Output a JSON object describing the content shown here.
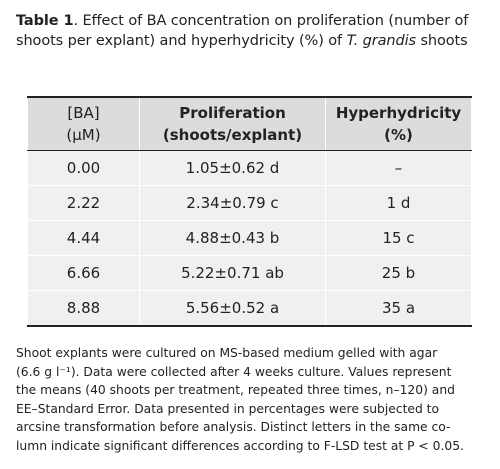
{
  "caption": {
    "label": "Table 1",
    "text": ". Effect of BA concentration on proliferation (number of shoots per explant) and hyperhydricity (%) of ",
    "species": "T. grandis",
    "tail": " shoots"
  },
  "table": {
    "headers": [
      {
        "line1": "[BA]",
        "line2": "(µM)"
      },
      {
        "line1": "Proliferation",
        "line2": "(shoots/explant)"
      },
      {
        "line1": "Hyperhydricity",
        "line2": "(%)"
      }
    ],
    "rows": [
      [
        "0.00",
        "1.05±0.62 d",
        "–"
      ],
      [
        "2.22",
        "2.34±0.79 c",
        "1 d"
      ],
      [
        "4.44",
        "4.88±0.43 b",
        "15 c"
      ],
      [
        "6.66",
        "5.22±0.71 ab",
        "25 b"
      ],
      [
        "8.88",
        "5.56±0.52 a",
        "35 a"
      ]
    ]
  },
  "footnote": {
    "lines": [
      "Shoot explants were cultured on MS-based medium gelled with agar",
      "(6.6 g l⁻¹). Data were collected after 4 weeks culture. Values represent",
      "the means (40 shoots per treatment, repeated three times, n–120) and",
      "EE–Standard Error. Data presented in percentages were subjected to",
      "arcsine transformation before analysis. Distinct letters in the same co-",
      "lumn indicate significant differences according to F-LSD test at P < 0.05."
    ]
  }
}
